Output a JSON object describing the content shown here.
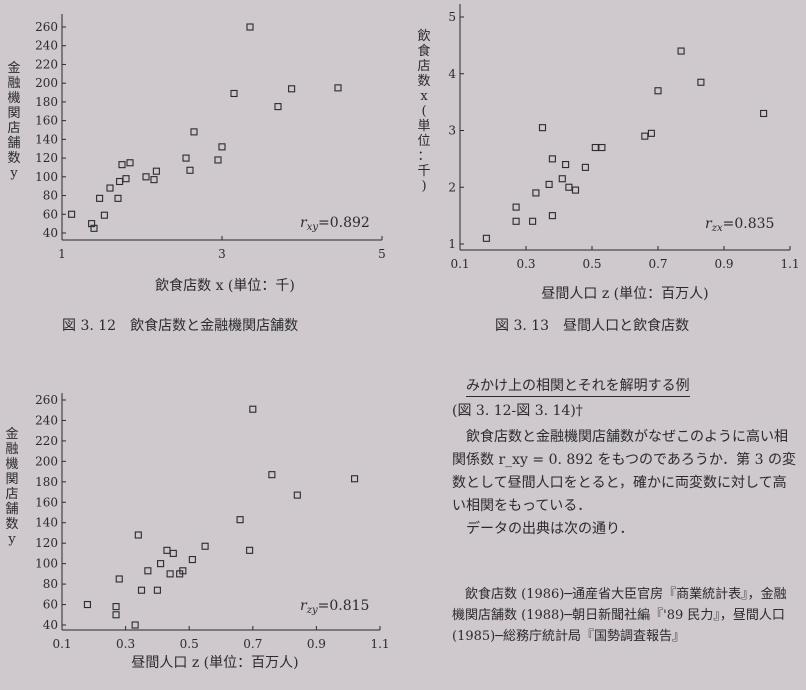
{
  "chart_data": [
    {
      "type": "scatter",
      "title": "",
      "caption": "図 3. 12　飲食店数と金融機関店舗数",
      "xlabel": "飲食店数 x (単位：千)",
      "ylabel": "金融機関店舗数 y",
      "annotation": "r_xy = 0.892",
      "annotation_sub": "xy",
      "annotation_value": "=0.892",
      "xlim": [
        1,
        5
      ],
      "ylim": [
        40,
        260
      ],
      "xticks": [
        "1",
        "3",
        "5"
      ],
      "yticks": [
        "260",
        "240",
        "220",
        "200",
        "180",
        "160",
        "140",
        "120",
        "100",
        "80",
        "60",
        "40"
      ],
      "x": [
        1.12,
        1.37,
        1.4,
        1.47,
        1.53,
        1.6,
        1.7,
        1.72,
        1.75,
        1.8,
        1.85,
        2.05,
        2.15,
        2.18,
        2.55,
        2.6,
        2.65,
        2.95,
        3.0,
        3.15,
        3.35,
        3.7,
        3.87,
        4.45
      ],
      "y": [
        60,
        50,
        45,
        77,
        59,
        88,
        77,
        95,
        113,
        98,
        115,
        100,
        97,
        106,
        120,
        107,
        148,
        118,
        132,
        189,
        260,
        175,
        194,
        195
      ]
    },
    {
      "type": "scatter",
      "title": "",
      "caption": "図 3. 13　昼間人口と飲食店数",
      "xlabel": "昼間人口 z (単位：百万人)",
      "ylabel": "飲食店数 x (単位：千)",
      "annotation": "r_zx = 0.835",
      "annotation_sub": "zx",
      "annotation_value": "=0.835",
      "xlim": [
        0.1,
        1.1
      ],
      "ylim": [
        1,
        5
      ],
      "xticks": [
        "0.1",
        "0.3",
        "0.5",
        "0.7",
        "0.9",
        "1.1"
      ],
      "yticks": [
        "1",
        "2",
        "3",
        "4",
        "5"
      ],
      "x": [
        0.18,
        0.27,
        0.27,
        0.32,
        0.33,
        0.35,
        0.37,
        0.38,
        0.38,
        0.41,
        0.42,
        0.43,
        0.45,
        0.48,
        0.51,
        0.53,
        0.66,
        0.68,
        0.7,
        0.77,
        0.83,
        1.02
      ],
      "y": [
        1.1,
        1.65,
        1.4,
        1.4,
        1.9,
        3.05,
        2.05,
        1.5,
        2.5,
        2.15,
        2.4,
        2.0,
        1.95,
        2.35,
        2.7,
        2.7,
        2.9,
        2.95,
        3.7,
        4.4,
        3.85,
        3.3
      ]
    },
    {
      "type": "scatter",
      "title": "",
      "caption": "",
      "xlabel": "昼間人口 z (単位：百万人)",
      "ylabel": "金融機関店舗数 y",
      "annotation": "r_zy = 0.815",
      "annotation_sub": "zy",
      "annotation_value": "=0.815",
      "xlim": [
        0.1,
        1.1
      ],
      "ylim": [
        40,
        260
      ],
      "xticks": [
        "0.1",
        "0.3",
        "0.5",
        "0.7",
        "0.9",
        "1.1"
      ],
      "yticks": [
        "260",
        "240",
        "220",
        "200",
        "180",
        "160",
        "140",
        "120",
        "100",
        "80",
        "60",
        "40"
      ],
      "x": [
        0.18,
        0.27,
        0.27,
        0.28,
        0.33,
        0.34,
        0.35,
        0.37,
        0.4,
        0.41,
        0.43,
        0.44,
        0.45,
        0.47,
        0.48,
        0.51,
        0.55,
        0.66,
        0.69,
        0.7,
        0.76,
        0.84,
        1.02
      ],
      "y": [
        60,
        58,
        50,
        85,
        40,
        128,
        74,
        93,
        74,
        100,
        113,
        90,
        110,
        90,
        93,
        104,
        117,
        143,
        113,
        251,
        187,
        167,
        183
      ]
    }
  ],
  "note": {
    "title": "みかけ上の相関とそれを解明する例",
    "ref": "(図 3. 12-図 3. 14)†",
    "para1": "飲食店数と金融機関店舗数がなぜこのように高い相関係数 r_xy = 0. 892 をもつのであろうか．第 3 の変数として昼間人口をとると，確かに両変数に対して高い相関をもっている．",
    "para2": "データの出典は次の通り．",
    "source": "飲食店数 (1986)─通産省大臣官房『商業統計表』，金融機関店舗数 (1988)─朝日新聞社編『'89 民力』，昼間人口 (1985)─総務庁統計局『国勢調査報告』"
  }
}
